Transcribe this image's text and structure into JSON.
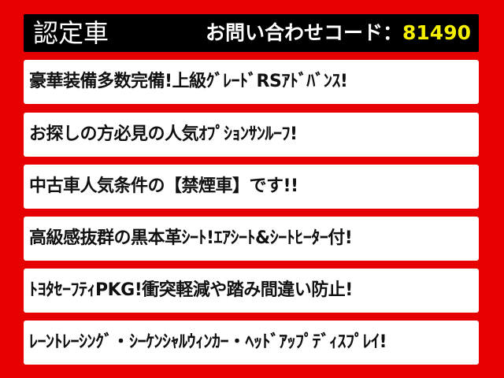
{
  "header": {
    "title": "認定車",
    "code_label": "お問い合わせコード：",
    "code_value": "81490",
    "code_color": "#f5f000"
  },
  "panels": [
    "豪華装備多数完備!上級ｸﾞﾚｰﾄﾞRSｱﾄﾞﾊﾞﾝｽ!",
    "お探しの方必見の人気ｵﾌﾟｼｮﾝｻﾝﾙｰﾌ!",
    "中古車人気条件の【禁煙車】です!!",
    "高級感抜群の黒本革ｼｰﾄ!ｴｱｼｰﾄ&ｼｰﾄﾋｰﾀｰ付!",
    "ﾄﾖﾀｾｰﾌﾃｨPKG!衝突軽減や踏み間違い防止!",
    "ﾚｰﾝﾄﾚｰｼﾝｸﾞ・ｼｰｹﾝｼｬﾙｳｨﾝｶｰ・ﾍｯﾄﾞｱｯﾌﾟﾃﾞｨｽﾌﾟﾚｲ!"
  ],
  "colors": {
    "background": "#e60000",
    "header": "#000000",
    "panel": "#ffffff"
  }
}
